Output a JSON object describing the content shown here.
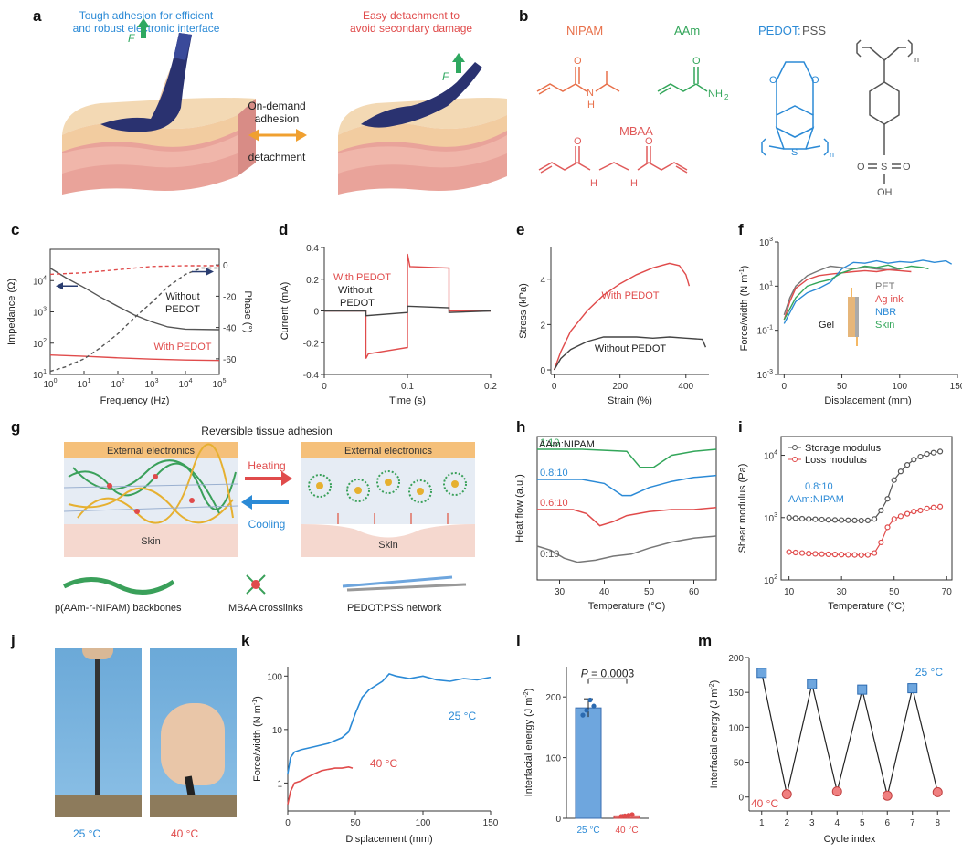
{
  "panel_labels": {
    "a": "a",
    "b": "b",
    "c": "c",
    "d": "d",
    "e": "e",
    "f": "f",
    "g": "g",
    "h": "h",
    "i": "i",
    "j": "j",
    "k": "k",
    "l": "l",
    "m": "m"
  },
  "a": {
    "left_caption": "Tough adhesion for efficient and robust electronic interface",
    "right_caption": "Easy detachment to avoid secondary damage",
    "force_label": "F",
    "center_top": "On-demand adhesion",
    "center_bottom": "detachment",
    "colors": {
      "left": "#2b8ad6",
      "right": "#e04b4b",
      "arrow": "#f0a030",
      "force": "#2fa860"
    }
  },
  "b": {
    "nipam": "NIPAM",
    "aam": "AAm",
    "pedot": "PEDOT",
    "pss": "PSS",
    "pedot_sep": ":",
    "mbaa": "MBAA",
    "atom_o": "O",
    "atom_n": "N",
    "atom_h": "H",
    "atom_nh2": "NH",
    "sub2": "2",
    "atom_s": "S",
    "atom_oh": "OH",
    "sub_n": "n",
    "colors": {
      "nipam": "#e8704a",
      "aam": "#33a65a",
      "pedot": "#2b8ad6",
      "pss": "#555555",
      "mbaa": "#e05a5a"
    }
  },
  "chart_data": [
    {
      "panel": "c",
      "type": "line",
      "xlabel": "Frequency (Hz)",
      "ylabel": "Impedance (Ω)",
      "y2label": "Phase (°)",
      "xscale": "log",
      "xlim": [
        1,
        100000
      ],
      "ylim": [
        10,
        100000
      ],
      "y2lim": [
        -70,
        10
      ],
      "xticks": [
        1,
        10,
        100,
        1000,
        10000,
        100000
      ],
      "xticklabels": [
        "10",
        "10",
        "10",
        "10",
        "10",
        "10"
      ],
      "xtickexp": [
        "0",
        "1",
        "2",
        "3",
        "4",
        "5"
      ],
      "yticklabels": [
        "10",
        "10",
        "10",
        "10"
      ],
      "ytickexp": [
        "1",
        "2",
        "3",
        "4"
      ],
      "yticks": [
        10,
        100,
        1000,
        10000
      ],
      "y2ticks": [
        0,
        -20,
        -40,
        -60
      ],
      "y2ticklabels": [
        "0",
        "-20",
        "-40",
        "-60"
      ],
      "series": [
        {
          "name": "Without PEDOT impedance",
          "x": [
            1,
            3,
            10,
            30,
            100,
            300,
            1000,
            3000,
            10000,
            100000
          ],
          "y": [
            25000,
            12000,
            6000,
            3000,
            1500,
            800,
            480,
            330,
            280,
            270
          ],
          "color": "#555555",
          "style": "solid"
        },
        {
          "name": "With PEDOT impedance",
          "x": [
            1,
            10,
            100,
            1000,
            10000,
            100000
          ],
          "y": [
            42,
            38,
            34,
            31,
            29,
            28
          ],
          "color": "#e04b4b",
          "style": "solid"
        },
        {
          "name": "Without PEDOT phase",
          "x": [
            1,
            3,
            10,
            30,
            100,
            300,
            1000,
            3000,
            10000,
            30000,
            100000
          ],
          "y": [
            -68,
            -65,
            -60,
            -53,
            -44,
            -34,
            -24,
            -14,
            -6,
            -2,
            -2
          ],
          "color": "#555555",
          "style": "dashed",
          "axis": "y2"
        },
        {
          "name": "With PEDOT phase",
          "x": [
            1,
            10,
            100,
            1000,
            10000,
            100000
          ],
          "y": [
            -6,
            -5,
            -3,
            -1,
            -0.5,
            -0.5
          ],
          "color": "#e04b4b",
          "style": "dashed",
          "axis": "y2"
        }
      ],
      "annotations": {
        "without": "Without PEDOT",
        "with": "With PEDOT"
      }
    },
    {
      "panel": "d",
      "type": "line",
      "xlabel": "Time (s)",
      "ylabel": "Current (mA)",
      "xlim": [
        0,
        0.2
      ],
      "ylim": [
        -0.4,
        0.4
      ],
      "xticks": [
        0,
        0.1,
        0.2
      ],
      "xticklabels": [
        "0",
        "0.1",
        "0.2"
      ],
      "yticks": [
        -0.4,
        -0.2,
        0,
        0.2,
        0.4
      ],
      "yticklabels": [
        "-0.4",
        "-0.2",
        "0",
        "0.2",
        "0.4"
      ],
      "series": [
        {
          "name": "With PEDOT",
          "x": [
            0,
            0.05,
            0.05,
            0.053,
            0.1,
            0.1,
            0.103,
            0.15,
            0.15,
            0.155,
            0.2
          ],
          "y": [
            0,
            0,
            -0.3,
            -0.27,
            -0.23,
            0.36,
            0.28,
            0.27,
            0,
            0,
            0
          ],
          "color": "#e04b4b"
        },
        {
          "name": "Without PEDOT",
          "x": [
            0,
            0.05,
            0.05,
            0.1,
            0.1,
            0.15,
            0.15,
            0.2
          ],
          "y": [
            0,
            0,
            -0.03,
            -0.01,
            0.03,
            0.02,
            -0.01,
            0
          ],
          "color": "#444444"
        }
      ],
      "legend": {
        "with": "With PEDOT",
        "without": "Without PEDOT"
      }
    },
    {
      "panel": "e",
      "type": "line",
      "xlabel": "Strain (%)",
      "ylabel": "Stress (kPa)",
      "xlim": [
        -10,
        470
      ],
      "ylim": [
        -0.2,
        5.4
      ],
      "xticks": [
        0,
        200,
        400
      ],
      "xticklabels": [
        "0",
        "200",
        "400"
      ],
      "yticks": [
        0,
        2,
        4
      ],
      "yticklabels": [
        "0",
        "2",
        "4"
      ],
      "series": [
        {
          "name": "With PEDOT",
          "x": [
            0,
            20,
            50,
            100,
            150,
            200,
            250,
            300,
            350,
            380,
            400,
            410
          ],
          "y": [
            0,
            0.8,
            1.7,
            2.6,
            3.3,
            3.8,
            4.2,
            4.5,
            4.7,
            4.6,
            4.2,
            3.7
          ],
          "color": "#e04b4b"
        },
        {
          "name": "Without PEDOT",
          "x": [
            0,
            20,
            50,
            100,
            150,
            200,
            250,
            300,
            350,
            400,
            450,
            460
          ],
          "y": [
            0,
            0.5,
            0.9,
            1.25,
            1.45,
            1.45,
            1.45,
            1.4,
            1.45,
            1.4,
            1.35,
            1.0
          ],
          "color": "#444444"
        }
      ],
      "annotations": {
        "with": "With PEDOT",
        "without": "Without PEDOT"
      }
    },
    {
      "panel": "f",
      "type": "line",
      "xlabel": "Displacement (mm)",
      "ylabel": "Force/width (N m",
      "ylabel_exp": "-1",
      "xlim": [
        -5,
        150
      ],
      "ylim": [
        0.001,
        1000
      ],
      "yscale": "log",
      "xticks": [
        0,
        50,
        100,
        150
      ],
      "xticklabels": [
        "0",
        "50",
        "100",
        "150"
      ],
      "yticks": [
        0.001,
        0.1,
        10,
        1000
      ],
      "yticklabels": [
        "10",
        "10",
        "10",
        "10"
      ],
      "ytickexp": [
        "-3",
        "-1",
        "1",
        "3"
      ],
      "series": [
        {
          "name": "PET",
          "x": [
            0,
            5,
            10,
            20,
            30,
            40,
            50,
            60,
            70,
            80,
            90,
            100
          ],
          "y": [
            0.5,
            3,
            10,
            30,
            50,
            80,
            70,
            60,
            70,
            60,
            55,
            60
          ],
          "color": "#777777"
        },
        {
          "name": "Ag ink",
          "x": [
            0,
            5,
            10,
            20,
            30,
            40,
            50,
            60,
            70,
            80,
            90,
            100,
            110
          ],
          "y": [
            0.3,
            2,
            8,
            20,
            30,
            35,
            40,
            45,
            50,
            45,
            55,
            50,
            45
          ],
          "color": "#e04b4b"
        },
        {
          "name": "NBR",
          "x": [
            0,
            10,
            20,
            30,
            40,
            50,
            60,
            70,
            80,
            90,
            100,
            110,
            120,
            130,
            140,
            145
          ],
          "y": [
            0.2,
            2,
            5,
            8,
            15,
            60,
            120,
            110,
            140,
            110,
            130,
            120,
            150,
            120,
            140,
            100
          ],
          "color": "#2b8ad6"
        },
        {
          "name": "Skin",
          "x": [
            0,
            10,
            20,
            30,
            40,
            50,
            60,
            70,
            80,
            90,
            100,
            110,
            120,
            125
          ],
          "y": [
            0.3,
            3,
            10,
            15,
            20,
            40,
            60,
            80,
            70,
            90,
            60,
            80,
            70,
            60
          ],
          "color": "#33a65a"
        }
      ],
      "legend": {
        "pet": "PET",
        "ag": "Ag ink",
        "nbr": "NBR",
        "skin": "Skin",
        "gel": "Gel"
      }
    },
    {
      "panel": "h",
      "type": "line",
      "xlabel": "Temperature (°C)",
      "ylabel": "Heat flow (a.u.)",
      "xlim": [
        25,
        65
      ],
      "xticks": [
        30,
        40,
        50,
        60
      ],
      "xticklabels": [
        "30",
        "40",
        "50",
        "60"
      ],
      "series": [
        {
          "name": "1:10",
          "x": [
            25,
            35,
            45,
            48,
            51,
            55,
            60,
            65
          ],
          "y": [
            0,
            0,
            -0.1,
            -0.9,
            -0.9,
            -0.3,
            -0.1,
            0
          ],
          "color": "#33a65a"
        },
        {
          "name": "0.8:10",
          "x": [
            25,
            35,
            40,
            44,
            46,
            50,
            55,
            60,
            65
          ],
          "y": [
            0,
            0,
            -0.2,
            -0.8,
            -0.8,
            -0.4,
            -0.1,
            0.1,
            0.2
          ],
          "color": "#2b8ad6"
        },
        {
          "name": "0.6:10",
          "x": [
            25,
            33,
            36,
            39,
            42,
            45,
            50,
            55,
            60,
            65
          ],
          "y": [
            0,
            0,
            -0.2,
            -0.8,
            -0.6,
            -0.3,
            -0.1,
            0,
            0,
            0.1
          ],
          "color": "#e04b4b"
        },
        {
          "name": "0:10",
          "x": [
            25,
            28,
            31,
            34,
            38,
            42,
            46,
            50,
            55,
            60,
            65
          ],
          "y": [
            0,
            -0.2,
            -0.6,
            -0.8,
            -0.7,
            -0.5,
            -0.4,
            -0.1,
            0.2,
            0.4,
            0.5
          ],
          "color": "#777777"
        }
      ],
      "title": "AAm:NIPAM"
    },
    {
      "panel": "i",
      "type": "line",
      "xlabel": "Temperature (°C)",
      "ylabel": "Shear modulus (Pa)",
      "xlim": [
        7,
        72
      ],
      "ylim": [
        100,
        20000
      ],
      "yscale": "log",
      "xticks": [
        10,
        30,
        50,
        70
      ],
      "xticklabels": [
        "10",
        "30",
        "50",
        "70"
      ],
      "yticks": [
        100,
        1000,
        10000
      ],
      "yticklabels": [
        "10",
        "10",
        "10"
      ],
      "ytickexp": [
        "2",
        "3",
        "4"
      ],
      "series": [
        {
          "name": "Storage modulus",
          "x": [
            10,
            12.5,
            15,
            17.5,
            20,
            22.5,
            25,
            27.5,
            30,
            32.5,
            35,
            37.5,
            40,
            42.5,
            45,
            47.5,
            50,
            52.5,
            55,
            57.5,
            60,
            62.5,
            65,
            67.5
          ],
          "y": [
            1000,
            980,
            960,
            950,
            940,
            930,
            920,
            915,
            910,
            905,
            900,
            895,
            900,
            950,
            1300,
            2000,
            4000,
            5500,
            7000,
            8500,
            9500,
            10500,
            11000,
            11500
          ],
          "color": "#555555"
        },
        {
          "name": "Loss modulus",
          "x": [
            10,
            12.5,
            15,
            17.5,
            20,
            22.5,
            25,
            27.5,
            30,
            32.5,
            35,
            37.5,
            40,
            42.5,
            45,
            47.5,
            50,
            52.5,
            55,
            57.5,
            60,
            62.5,
            65,
            67.5
          ],
          "y": [
            280,
            275,
            270,
            265,
            262,
            260,
            258,
            256,
            255,
            253,
            252,
            250,
            252,
            270,
            400,
            700,
            950,
            1050,
            1150,
            1250,
            1300,
            1400,
            1450,
            1500
          ],
          "color": "#e04b4b"
        }
      ],
      "annotation": "0.8:10",
      "annotation2": "AAm:NIPAM"
    },
    {
      "panel": "k",
      "type": "line",
      "xlabel": "Displacement (mm)",
      "ylabel": "Force/width (N m",
      "ylabel_exp": "-1",
      "xlim": [
        0,
        150
      ],
      "ylim": [
        0.3,
        150
      ],
      "yscale": "log",
      "xticks": [
        0,
        50,
        100,
        150
      ],
      "xticklabels": [
        "0",
        "50",
        "100",
        "150"
      ],
      "yticks": [
        1,
        10,
        100
      ],
      "yticklabels": [
        "1",
        "10",
        "100"
      ],
      "series": [
        {
          "name": "25 °C",
          "x": [
            0,
            2,
            5,
            10,
            20,
            30,
            40,
            45,
            50,
            55,
            60,
            70,
            75,
            80,
            90,
            100,
            110,
            120,
            130,
            140,
            150
          ],
          "y": [
            1.5,
            3,
            3.8,
            4.2,
            4.8,
            5.5,
            7,
            9,
            20,
            40,
            55,
            80,
            110,
            100,
            90,
            100,
            85,
            80,
            90,
            85,
            95
          ],
          "color": "#2b8ad6"
        },
        {
          "name": "40 °C",
          "x": [
            0,
            2,
            5,
            10,
            15,
            20,
            25,
            30,
            35,
            40,
            45,
            48
          ],
          "y": [
            0.4,
            0.7,
            1.0,
            1.1,
            1.3,
            1.5,
            1.7,
            1.8,
            1.9,
            1.9,
            2.0,
            1.9
          ],
          "color": "#e04b4b"
        }
      ],
      "annotations": {
        "t25": "25 °C",
        "t40": "40 °C"
      }
    },
    {
      "panel": "l",
      "type": "bar",
      "ylabel": "Interfacial energy (J m",
      "ylabel_exp": "-2",
      "categories": [
        "25 °C",
        "40 °C"
      ],
      "values": [
        182,
        4
      ],
      "errors": [
        15,
        2
      ],
      "points": [
        [
          170,
          178,
          195,
          185
        ],
        [
          3,
          4,
          5,
          6
        ]
      ],
      "ylim": [
        0,
        250
      ],
      "yticks": [
        0,
        100,
        200
      ],
      "yticklabels": [
        "0",
        "100",
        "200"
      ],
      "annotation_p": "P",
      "annotation_val": " = 0.0003",
      "colors": [
        "#6ea6de",
        "#e57070"
      ]
    },
    {
      "panel": "m",
      "type": "line",
      "xlabel": "Cycle index",
      "ylabel": "Interfacial energy (J m",
      "ylabel_exp": "-2",
      "xlim": [
        0.5,
        8.5
      ],
      "ylim": [
        -20,
        200
      ],
      "xticks": [
        1,
        2,
        3,
        4,
        5,
        6,
        7,
        8
      ],
      "xticklabels": [
        "1",
        "2",
        "3",
        "4",
        "5",
        "6",
        "7",
        "8"
      ],
      "yticks": [
        0,
        50,
        100,
        150,
        200
      ],
      "yticklabels": [
        "0",
        "50",
        "100",
        "150",
        "200"
      ],
      "x": [
        1,
        2,
        3,
        4,
        5,
        6,
        7,
        8
      ],
      "y": [
        178,
        4,
        162,
        8,
        154,
        2,
        156,
        7
      ],
      "annotations": {
        "t25": "25 °C",
        "t40": "40 °C"
      }
    }
  ],
  "g": {
    "title": "Reversible tissue adhesion",
    "ext1": "External electronics",
    "ext2": "External electronics",
    "skin1": "Skin",
    "skin2": "Skin",
    "heating": "Heating",
    "cooling": "Cooling",
    "legend1": "p(AAm-r-NIPAM) backbones",
    "legend2": "MBAA crosslinks",
    "legend3": "PEDOT:PSS network"
  },
  "j": {
    "left": "25 °C",
    "right": "40 °C"
  }
}
